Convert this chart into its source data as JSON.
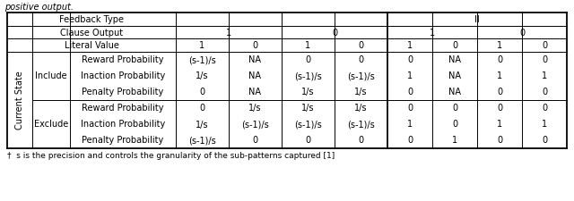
{
  "title_text": "positive output.",
  "footnote": "†  s is the precision and controls the granularity of the sub-patterns captured [1]",
  "row_group_label": "Current State",
  "include_label": "Include",
  "exclude_label": "Exclude",
  "include_rows": [
    [
      "Reward Probability",
      "(s-1)/s",
      "NA",
      "0",
      "0",
      "0",
      "NA",
      "0",
      "0"
    ],
    [
      "Inaction Probability",
      "1/s",
      "NA",
      "(s-1)/s",
      "(s-1)/s",
      "1",
      "NA",
      "1",
      "1"
    ],
    [
      "Penalty Probability",
      "0",
      "NA",
      "1/s",
      "1/s",
      "0",
      "NA",
      "0",
      "0"
    ]
  ],
  "exclude_rows": [
    [
      "Reward Probability",
      "0",
      "1/s",
      "1/s",
      "1/s",
      "0",
      "0",
      "0",
      "0"
    ],
    [
      "Inaction Probability",
      "1/s",
      "(s-1)/s",
      "(s-1)/s",
      "(s-1)/s",
      "1",
      "0",
      "1",
      "1"
    ],
    [
      "Penalty Probability",
      "(s-1)/s",
      "0",
      "0",
      "0",
      "0",
      "1",
      "0",
      "0"
    ]
  ],
  "font_size": 7.0,
  "footnote_font_size": 6.5
}
